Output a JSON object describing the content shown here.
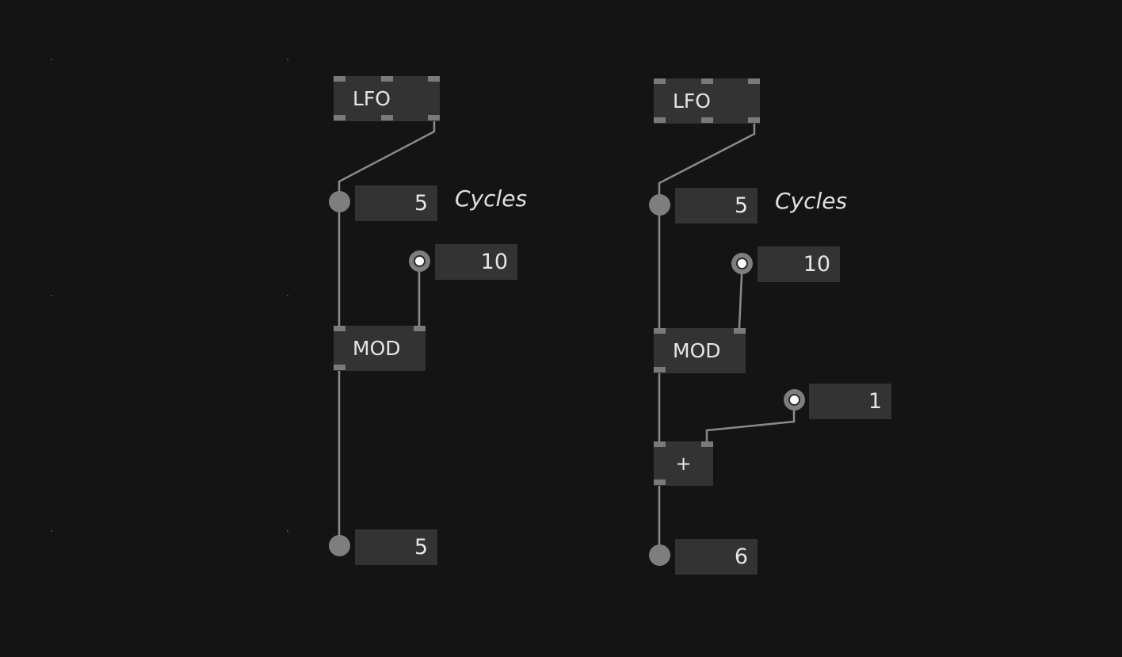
{
  "patch": {
    "left": {
      "lfo_label": "LFO",
      "cycles_value": "5",
      "cycles_comment": "Cycles",
      "mod_divisor_value": "10",
      "mod_label": "MOD",
      "output_value": "5"
    },
    "right": {
      "lfo_label": "LFO",
      "cycles_value": "5",
      "cycles_comment": "Cycles",
      "mod_divisor_value": "10",
      "mod_label": "MOD",
      "add_value": "1",
      "add_label": "+",
      "output_value": "6"
    }
  },
  "colors": {
    "background": "#141414",
    "node_fill": "#333333",
    "pin": "#7a7a7a",
    "link": "#8a8a8a",
    "text": "#e6e6e6"
  },
  "icons": {
    "io_pin": "filled-circle-icon",
    "bang_pin": "ring-dot-icon"
  }
}
